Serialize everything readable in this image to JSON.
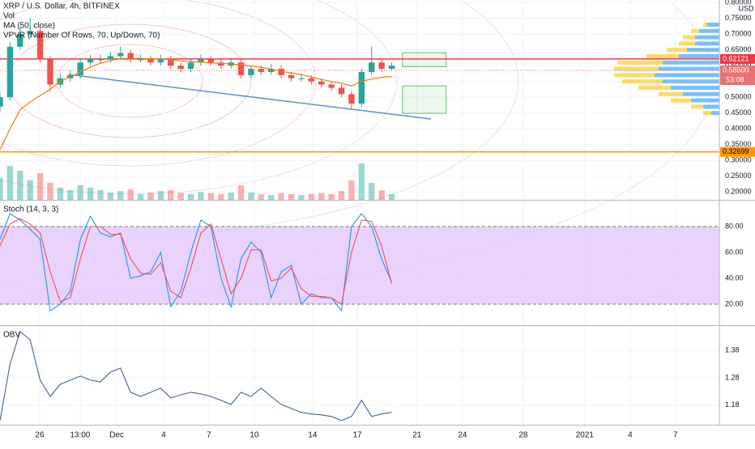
{
  "chart_data": [
    {
      "type": "candlestick",
      "title": "XRP / U.S. Dollar, 4h, BITFINEX",
      "axis_label": "USD",
      "x": [
        0,
        4,
        8,
        12,
        16,
        20,
        24,
        28,
        32,
        36,
        40,
        44,
        48,
        52,
        56,
        60,
        64,
        68,
        72,
        76,
        80,
        84,
        88,
        92,
        96,
        100,
        104,
        108,
        112,
        116,
        120,
        124,
        128,
        132,
        136,
        140,
        144,
        148,
        152,
        156
      ],
      "open": [
        0.47,
        0.5,
        0.66,
        0.7,
        0.71,
        0.62,
        0.54,
        0.56,
        0.57,
        0.61,
        0.62,
        0.62,
        0.63,
        0.64,
        0.62,
        0.62,
        0.61,
        0.62,
        0.6,
        0.59,
        0.61,
        0.62,
        0.61,
        0.6,
        0.61,
        0.57,
        0.59,
        0.58,
        0.59,
        0.57,
        0.56,
        0.56,
        0.55,
        0.54,
        0.53,
        0.51,
        0.48,
        0.58,
        0.61,
        0.59
      ],
      "high": [
        0.515,
        0.675,
        0.72,
        0.75,
        0.72,
        0.63,
        0.575,
        0.585,
        0.625,
        0.635,
        0.635,
        0.645,
        0.66,
        0.65,
        0.635,
        0.63,
        0.635,
        0.63,
        0.61,
        0.625,
        0.635,
        0.63,
        0.62,
        0.625,
        0.62,
        0.6,
        0.6,
        0.605,
        0.6,
        0.58,
        0.575,
        0.57,
        0.56,
        0.55,
        0.54,
        0.52,
        0.59,
        0.66,
        0.62,
        0.61
      ],
      "low": [
        0.455,
        0.49,
        0.65,
        0.69,
        0.61,
        0.52,
        0.53,
        0.55,
        0.56,
        0.6,
        0.605,
        0.61,
        0.62,
        0.61,
        0.61,
        0.6,
        0.6,
        0.59,
        0.58,
        0.58,
        0.6,
        0.6,
        0.59,
        0.59,
        0.56,
        0.56,
        0.57,
        0.57,
        0.56,
        0.55,
        0.55,
        0.54,
        0.53,
        0.52,
        0.5,
        0.46,
        0.47,
        0.57,
        0.58,
        0.585
      ],
      "close": [
        0.5,
        0.66,
        0.7,
        0.71,
        0.62,
        0.54,
        0.56,
        0.57,
        0.61,
        0.62,
        0.62,
        0.63,
        0.64,
        0.62,
        0.62,
        0.61,
        0.62,
        0.6,
        0.59,
        0.61,
        0.62,
        0.61,
        0.6,
        0.61,
        0.57,
        0.59,
        0.58,
        0.59,
        0.57,
        0.56,
        0.56,
        0.55,
        0.54,
        0.53,
        0.51,
        0.48,
        0.58,
        0.61,
        0.59,
        0.6
      ],
      "up_color": "#26a69a",
      "down_color": "#ef5350",
      "volume": {
        "name": "Vol",
        "values": [
          45,
          70,
          60,
          40,
          55,
          35,
          25,
          20,
          30,
          25,
          20,
          15,
          18,
          22,
          12,
          15,
          18,
          20,
          15,
          12,
          16,
          14,
          12,
          15,
          30,
          15,
          12,
          10,
          14,
          12,
          10,
          12,
          14,
          12,
          18,
          40,
          75,
          35,
          20,
          12
        ]
      },
      "volume_ylim": [
        0,
        100
      ],
      "series": [
        {
          "name": "MA (50, close)",
          "color": "#f57c00",
          "values": [
            0.333,
            0.4,
            0.46,
            0.485,
            0.505,
            0.525,
            0.55,
            0.565,
            0.58,
            0.595,
            0.608,
            0.616,
            0.623,
            0.623,
            0.623,
            0.622,
            0.621,
            0.619,
            0.615,
            0.613,
            0.611,
            0.609,
            0.607,
            0.605,
            0.603,
            0.599,
            0.595,
            0.589,
            0.582,
            0.577,
            0.572,
            0.564,
            0.556,
            0.55,
            0.544,
            0.536,
            0.55,
            0.558,
            0.563,
            0.566
          ]
        }
      ],
      "profile": {
        "name": "VPVR (Number Of Rows, 70, Up/Down, 70)",
        "prices": [
          0.45,
          0.47,
          0.49,
          0.51,
          0.53,
          0.55,
          0.57,
          0.59,
          0.61,
          0.63,
          0.65,
          0.67,
          0.69,
          0.71,
          0.73
        ],
        "up": [
          10,
          20,
          35,
          45,
          60,
          70,
          80,
          75,
          70,
          50,
          40,
          30,
          30,
          25,
          15
        ],
        "down": [
          10,
          15,
          25,
          30,
          40,
          50,
          50,
          55,
          55,
          40,
          25,
          20,
          15,
          10,
          5
        ],
        "up_color": "#42a5f5",
        "down_color": "#ffca28"
      },
      "levels": [
        {
          "value": 0.62121,
          "label": "0.62121",
          "color": "#f23645"
        },
        {
          "value": 0.32699,
          "label": "0.32699",
          "color": "#ff9800"
        }
      ],
      "last_price": {
        "value": 0.585,
        "label": "0.58500",
        "countdown": "53:08",
        "color": "#e57373"
      },
      "trend_line": {
        "x": [
          27.4,
          171.6
        ],
        "y": [
          0.572,
          0.431
        ],
        "color": "#5b8fd6"
      },
      "zones": [
        {
          "x": [
            160.3,
            177.7
          ],
          "y": [
            0.597,
            0.641
          ]
        },
        {
          "x": [
            160.3,
            177.7
          ],
          "y": [
            0.449,
            0.536
          ]
        }
      ],
      "zone_color": "#66bb6a",
      "xlim": [
        0,
        286.5
      ],
      "xticks": [
        {
          "value": 15.8,
          "label": "26"
        },
        {
          "value": 31.9,
          "label": "13:00"
        },
        {
          "value": 46.5,
          "label": "Dec"
        },
        {
          "value": 65.2,
          "label": "4"
        },
        {
          "value": 83.2,
          "label": "7"
        },
        {
          "value": 101.3,
          "label": "10"
        },
        {
          "value": 124.5,
          "label": "14"
        },
        {
          "value": 142.3,
          "label": "17"
        },
        {
          "value": 166.1,
          "label": "21"
        },
        {
          "value": 184.2,
          "label": "24"
        },
        {
          "value": 208.4,
          "label": "28"
        },
        {
          "value": 232.9,
          "label": "2021"
        },
        {
          "value": 251,
          "label": "4"
        },
        {
          "value": 269,
          "label": "7"
        }
      ],
      "ylim": [
        0.175,
        0.808
      ],
      "yticks": [
        {
          "value": 0.2,
          "label": "0.20000"
        },
        {
          "value": 0.25,
          "label": "0.25000"
        },
        {
          "value": 0.3,
          "label": "0.30000"
        },
        {
          "value": 0.35,
          "label": "0.35000"
        },
        {
          "value": 0.4,
          "label": "0.40000"
        },
        {
          "value": 0.45,
          "label": "0.45000"
        },
        {
          "value": 0.5,
          "label": "0.50000"
        },
        {
          "value": 0.55,
          "label": "0.55000"
        },
        {
          "value": 0.6,
          "label": "0.60000"
        },
        {
          "value": 0.65,
          "label": "0.65000"
        },
        {
          "value": 0.7,
          "label": "0.70000"
        },
        {
          "value": 0.75,
          "label": "0.75000"
        },
        {
          "value": 0.8,
          "label": "0.80000"
        }
      ],
      "grid": true
    },
    {
      "type": "line",
      "title": "Stoch (14, 3, 3)",
      "series": [
        {
          "color": "#2196f3",
          "values": [
            70,
            90,
            85,
            78,
            70,
            15,
            20,
            30,
            70,
            88,
            75,
            72,
            75,
            40,
            42,
            45,
            60,
            18,
            30,
            60,
            85,
            80,
            40,
            18,
            55,
            68,
            60,
            25,
            45,
            50,
            20,
            28,
            25,
            25,
            15,
            80,
            90,
            80,
            55,
            37
          ]
        },
        {
          "color": "#ef5350",
          "values": [
            65,
            82,
            86,
            82,
            75,
            45,
            22,
            25,
            55,
            80,
            80,
            74,
            74,
            55,
            44,
            43,
            52,
            30,
            25,
            48,
            75,
            82,
            55,
            28,
            40,
            62,
            62,
            38,
            40,
            48,
            32,
            26,
            26,
            25,
            20,
            60,
            85,
            84,
            65,
            36
          ]
        }
      ],
      "band": [
        20,
        80
      ],
      "band_color": "#e1c4fb",
      "ylim": [
        3.75,
        100
      ],
      "yticks": [
        {
          "value": 20,
          "label": "20.00"
        },
        {
          "value": 40,
          "label": "40.00"
        },
        {
          "value": 60,
          "label": "60.00"
        },
        {
          "value": 80,
          "label": "80.00"
        }
      ],
      "grid": true
    },
    {
      "type": "line",
      "title": "OBV",
      "series": [
        {
          "color": "#3f5fa8",
          "values": [
            1.124,
            1.33,
            1.448,
            1.418,
            1.271,
            1.212,
            1.256,
            1.271,
            1.286,
            1.271,
            1.265,
            1.301,
            1.315,
            1.227,
            1.212,
            1.227,
            1.242,
            1.206,
            1.218,
            1.227,
            1.221,
            1.212,
            1.198,
            1.183,
            1.227,
            1.212,
            1.242,
            1.212,
            1.183,
            1.168,
            1.154,
            1.148,
            1.145,
            1.139,
            1.124,
            1.139,
            1.198,
            1.139,
            1.148,
            1.154
          ]
        }
      ],
      "ylim": [
        1.109,
        1.468
      ],
      "yticks": [
        1.18,
        1.28,
        1.38
      ],
      "grid": true
    }
  ]
}
